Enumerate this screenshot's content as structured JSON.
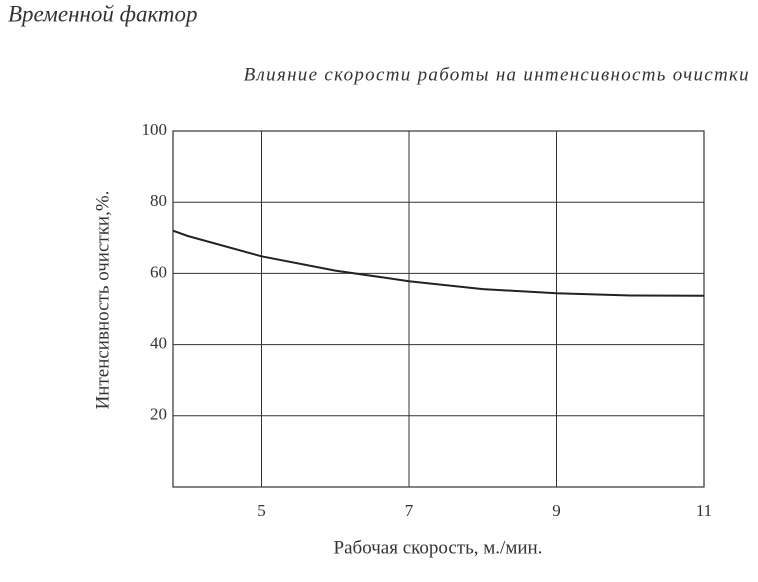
{
  "header": {
    "title": "Временной фактор"
  },
  "chart_data": {
    "type": "line",
    "title": "Влияние скорости работы на интенсивность очистки",
    "x_label": "Рабочая скорость, м./мин.",
    "y_label": "Интенсивность очистки,%.",
    "x": [
      3.8,
      4,
      5,
      6,
      7,
      8,
      9,
      10,
      11
    ],
    "values": [
      72,
      70.5,
      64.8,
      60.8,
      57.8,
      55.6,
      54.4,
      53.8,
      53.7
    ],
    "color": "#222222",
    "xlim": [
      3.8,
      11
    ],
    "xticks": [
      5,
      7,
      9,
      11
    ],
    "ylim": [
      0,
      100
    ],
    "yticks": [
      20,
      40,
      60,
      80,
      100
    ],
    "grid": true
  }
}
